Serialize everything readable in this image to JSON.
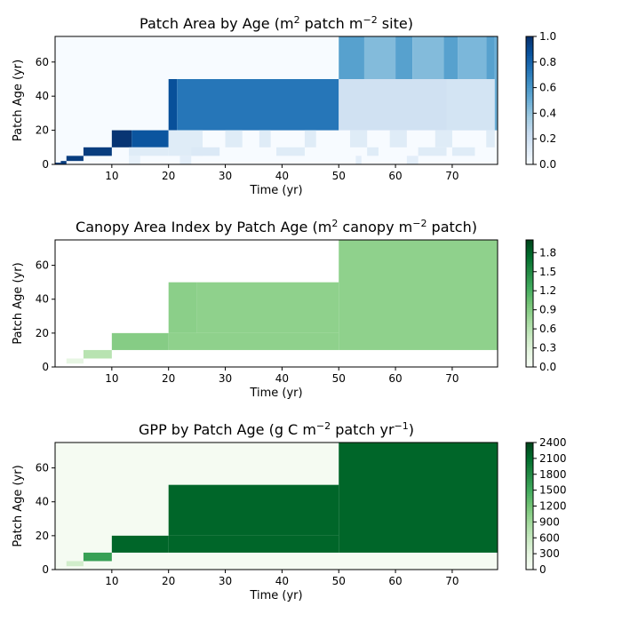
{
  "chart_data": [
    {
      "type": "heatmap",
      "title": {
        "pre": "Patch Area by Age (m",
        "sup1": "2",
        "mid": " patch m",
        "sup2": "−2",
        "post": " site)"
      },
      "xlabel": "Time (yr)",
      "ylabel": "Patch Age (yr)",
      "xlim": [
        0,
        78
      ],
      "ylim": [
        0,
        75
      ],
      "xticks": [
        10,
        20,
        30,
        40,
        50,
        60,
        70
      ],
      "yticks": [
        0,
        20,
        40,
        60
      ],
      "colormap": "Blues",
      "colors": [
        "#f7fbff",
        "#deebf7",
        "#c6dbef",
        "#9ecae1",
        "#6baed6",
        "#4292c6",
        "#2171b5",
        "#08519c",
        "#08306b"
      ],
      "colorbar": {
        "min": 0,
        "max": 1.0,
        "ticks": [
          "0.0",
          "0.2",
          "0.4",
          "0.6",
          "0.8",
          "1.0"
        ],
        "tick_values": [
          0,
          0.2,
          0.4,
          0.6,
          0.8,
          1.0
        ]
      },
      "cells": [
        {
          "t": [
            0,
            78
          ],
          "a": [
            0,
            75
          ],
          "v": 0.0
        },
        {
          "t": [
            0,
            1
          ],
          "a": [
            0,
            1
          ],
          "v": 0.95
        },
        {
          "t": [
            1,
            2
          ],
          "a": [
            0,
            2
          ],
          "v": 0.95
        },
        {
          "t": [
            2,
            5
          ],
          "a": [
            2,
            5
          ],
          "v": 0.95
        },
        {
          "t": [
            5,
            10
          ],
          "a": [
            5,
            10
          ],
          "v": 0.95
        },
        {
          "t": [
            10,
            13.5
          ],
          "a": [
            10,
            20
          ],
          "v": 0.98
        },
        {
          "t": [
            13.5,
            20
          ],
          "a": [
            10,
            20
          ],
          "v": 0.86
        },
        {
          "t": [
            13,
            20
          ],
          "a": [
            5,
            10
          ],
          "v": 0.12
        },
        {
          "t": [
            13,
            15
          ],
          "a": [
            0,
            5
          ],
          "v": 0.08
        },
        {
          "t": [
            20,
            21.5
          ],
          "a": [
            20,
            50
          ],
          "v": 0.88
        },
        {
          "t": [
            21.5,
            50
          ],
          "a": [
            20,
            50
          ],
          "v": 0.73
        },
        {
          "t": [
            20,
            26
          ],
          "a": [
            5,
            20
          ],
          "v": 0.12
        },
        {
          "t": [
            24,
            29
          ],
          "a": [
            5,
            10
          ],
          "v": 0.14
        },
        {
          "t": [
            30,
            33
          ],
          "a": [
            10,
            20
          ],
          "v": 0.12
        },
        {
          "t": [
            36,
            38
          ],
          "a": [
            10,
            20
          ],
          "v": 0.12
        },
        {
          "t": [
            39,
            44
          ],
          "a": [
            5,
            10
          ],
          "v": 0.12
        },
        {
          "t": [
            44,
            46
          ],
          "a": [
            10,
            20
          ],
          "v": 0.12
        },
        {
          "t": [
            22,
            24
          ],
          "a": [
            0,
            5
          ],
          "v": 0.1
        },
        {
          "t": [
            50,
            77.5
          ],
          "a": [
            20,
            50
          ],
          "v": 0.2
        },
        {
          "t": [
            69,
            77.5
          ],
          "a": [
            20,
            50
          ],
          "v": 0.18
        },
        {
          "t": [
            77.5,
            78
          ],
          "a": [
            20,
            75
          ],
          "v": 0.5
        },
        {
          "t": [
            50,
            54.5
          ],
          "a": [
            50,
            75
          ],
          "v": 0.56
        },
        {
          "t": [
            54.5,
            60
          ],
          "a": [
            50,
            75
          ],
          "v": 0.44
        },
        {
          "t": [
            60,
            63
          ],
          "a": [
            50,
            75
          ],
          "v": 0.56
        },
        {
          "t": [
            63,
            68.5
          ],
          "a": [
            50,
            75
          ],
          "v": 0.44
        },
        {
          "t": [
            68.5,
            71
          ],
          "a": [
            50,
            75
          ],
          "v": 0.56
        },
        {
          "t": [
            71,
            76
          ],
          "a": [
            50,
            75
          ],
          "v": 0.46
        },
        {
          "t": [
            76,
            77.5
          ],
          "a": [
            50,
            75
          ],
          "v": 0.56
        },
        {
          "t": [
            52,
            55
          ],
          "a": [
            10,
            20
          ],
          "v": 0.12
        },
        {
          "t": [
            55,
            57
          ],
          "a": [
            5,
            10
          ],
          "v": 0.12
        },
        {
          "t": [
            59,
            62
          ],
          "a": [
            10,
            20
          ],
          "v": 0.12
        },
        {
          "t": [
            62,
            64
          ],
          "a": [
            0,
            5
          ],
          "v": 0.1
        },
        {
          "t": [
            64,
            69
          ],
          "a": [
            5,
            10
          ],
          "v": 0.12
        },
        {
          "t": [
            67,
            70
          ],
          "a": [
            10,
            20
          ],
          "v": 0.12
        },
        {
          "t": [
            70,
            74
          ],
          "a": [
            5,
            10
          ],
          "v": 0.12
        },
        {
          "t": [
            76,
            77.5
          ],
          "a": [
            10,
            20
          ],
          "v": 0.12
        },
        {
          "t": [
            53,
            54
          ],
          "a": [
            0,
            5
          ],
          "v": 0.1
        }
      ]
    },
    {
      "type": "heatmap",
      "title": {
        "pre": "Canopy Area Index by Patch Age (m",
        "sup1": "2",
        "mid": " canopy m",
        "sup2": "−2",
        "post": " patch)"
      },
      "xlabel": "Time (yr)",
      "ylabel": "Patch Age (yr)",
      "xlim": [
        0,
        78
      ],
      "ylim": [
        0,
        75
      ],
      "xticks": [
        10,
        20,
        30,
        40,
        50,
        60,
        70
      ],
      "yticks": [
        0,
        20,
        40,
        60
      ],
      "colormap": "Greens",
      "colors": [
        "#f7fcf5",
        "#e5f5e0",
        "#c7e9c0",
        "#a1d99b",
        "#74c476",
        "#41ab5d",
        "#238b45",
        "#006d2c",
        "#00441b"
      ],
      "colorbar": {
        "min": 0,
        "max": 2.0,
        "ticks": [
          "0.0",
          "0.3",
          "0.6",
          "0.9",
          "1.2",
          "1.5",
          "1.8"
        ],
        "tick_values": [
          0,
          0.3,
          0.6,
          0.9,
          1.2,
          1.5,
          1.8
        ]
      },
      "cells": [
        {
          "t": [
            0,
            78
          ],
          "a": [
            0,
            75
          ],
          "v": null
        },
        {
          "t": [
            10,
            20
          ],
          "a": [
            10,
            20
          ],
          "v": 0.9
        },
        {
          "t": [
            20,
            25
          ],
          "a": [
            20,
            50
          ],
          "v": 0.87
        },
        {
          "t": [
            25,
            50
          ],
          "a": [
            20,
            50
          ],
          "v": 0.85
        },
        {
          "t": [
            20,
            50
          ],
          "a": [
            10,
            20
          ],
          "v": 0.85
        },
        {
          "t": [
            50,
            78
          ],
          "a": [
            10,
            75
          ],
          "v": 0.85
        },
        {
          "t": [
            5,
            10
          ],
          "a": [
            5,
            10
          ],
          "v": 0.6
        },
        {
          "t": [
            2,
            5
          ],
          "a": [
            2,
            5
          ],
          "v": 0.22
        }
      ]
    },
    {
      "type": "heatmap",
      "title": {
        "pre": "GPP by Patch Age (g C m",
        "sup1": "−2",
        "mid": " patch yr",
        "sup2": "−1",
        "post": ")"
      },
      "xlabel": "Time (yr)",
      "ylabel": "Patch Age (yr)",
      "xlim": [
        0,
        78
      ],
      "ylim": [
        0,
        75
      ],
      "xticks": [
        10,
        20,
        30,
        40,
        50,
        60,
        70
      ],
      "yticks": [
        0,
        20,
        40,
        60
      ],
      "colormap": "Greens",
      "colors": [
        "#f7fcf5",
        "#e5f5e0",
        "#c7e9c0",
        "#a1d99b",
        "#74c476",
        "#41ab5d",
        "#238b45",
        "#006d2c",
        "#00441b"
      ],
      "colorbar": {
        "min": 0,
        "max": 2400,
        "ticks": [
          "0",
          "300",
          "600",
          "900",
          "1200",
          "1500",
          "1800",
          "2100",
          "2400"
        ],
        "tick_values": [
          0,
          300,
          600,
          900,
          1200,
          1500,
          1800,
          2100,
          2400
        ]
      },
      "cells": [
        {
          "t": [
            0,
            78
          ],
          "a": [
            0,
            75
          ],
          "v": 40
        },
        {
          "t": [
            10,
            20
          ],
          "a": [
            10,
            20
          ],
          "v": 2150
        },
        {
          "t": [
            20,
            50
          ],
          "a": [
            20,
            50
          ],
          "v": 2150
        },
        {
          "t": [
            20,
            50
          ],
          "a": [
            10,
            20
          ],
          "v": 2150
        },
        {
          "t": [
            50,
            78
          ],
          "a": [
            10,
            75
          ],
          "v": 2150
        },
        {
          "t": [
            5,
            10
          ],
          "a": [
            5,
            10
          ],
          "v": 1600
        },
        {
          "t": [
            2,
            5
          ],
          "a": [
            2,
            5
          ],
          "v": 500
        }
      ]
    }
  ]
}
